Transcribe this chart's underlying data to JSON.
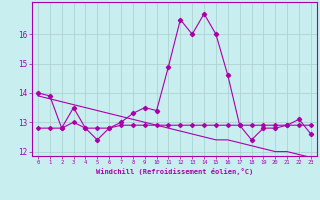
{
  "xlabel": "Windchill (Refroidissement éolien,°C)",
  "background_color": "#c8eef0",
  "line_color": "#aa00aa",
  "grid_color": "#aacccc",
  "series_main": [
    14.0,
    13.9,
    12.8,
    13.5,
    12.8,
    12.4,
    12.8,
    13.0,
    13.3,
    13.5,
    13.4,
    14.9,
    16.5,
    16.0,
    16.7,
    16.0,
    14.6,
    12.9,
    12.4,
    12.8,
    12.8,
    12.9,
    13.1,
    12.6
  ],
  "series_flat": [
    12.8,
    12.8,
    12.8,
    13.0,
    12.8,
    12.8,
    12.8,
    12.9,
    12.9,
    12.9,
    12.9,
    12.9,
    12.9,
    12.9,
    12.9,
    12.9,
    12.9,
    12.9,
    12.9,
    12.9,
    12.9,
    12.9,
    12.9,
    12.9
  ],
  "trend": [
    13.9,
    13.8,
    13.7,
    13.6,
    13.5,
    13.4,
    13.3,
    13.2,
    13.1,
    13.0,
    12.9,
    12.8,
    12.7,
    12.6,
    12.5,
    12.4,
    12.4,
    12.3,
    12.2,
    12.1,
    12.0,
    12.0,
    11.9,
    11.8
  ],
  "xlim": [
    0,
    23
  ],
  "ylim": [
    11.85,
    17.1
  ],
  "yticks": [
    12,
    13,
    14,
    15,
    16
  ],
  "xticks": [
    0,
    1,
    2,
    3,
    4,
    5,
    6,
    7,
    8,
    9,
    10,
    11,
    12,
    13,
    14,
    15,
    16,
    17,
    18,
    19,
    20,
    21,
    22,
    23
  ]
}
